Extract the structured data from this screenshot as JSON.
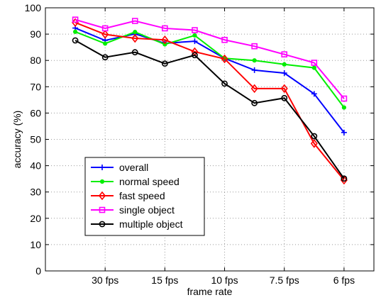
{
  "chart_data": {
    "type": "line",
    "xlabel": "frame rate",
    "ylabel": "accuracy (%)",
    "ylim": [
      0,
      100
    ],
    "yticks": [
      0,
      10,
      20,
      30,
      40,
      50,
      60,
      70,
      80,
      90,
      100
    ],
    "x": [
      1,
      2,
      3,
      4,
      5,
      6,
      7,
      8,
      9,
      10
    ],
    "xlim": [
      0,
      11
    ],
    "xticks": [
      {
        "pos": 2,
        "label": "30 fps"
      },
      {
        "pos": 4,
        "label": "15 fps"
      },
      {
        "pos": 6,
        "label": "10 fps"
      },
      {
        "pos": 8,
        "label": "7.5 fps"
      },
      {
        "pos": 10,
        "label": "6 fps"
      }
    ],
    "grid": true,
    "legend_position": "lower-left",
    "series": [
      {
        "name": "overall",
        "color": "#0000ff",
        "marker": "plus",
        "values": [
          92.3,
          87.6,
          90.1,
          86.5,
          87.3,
          80.8,
          76.3,
          75.2,
          67.3,
          52.6
        ]
      },
      {
        "name": "normal speed",
        "color": "#00ee00",
        "marker": "dot",
        "values": [
          90.9,
          86.4,
          90.8,
          86.1,
          89.5,
          80.8,
          80.0,
          78.5,
          77.2,
          62.1
        ]
      },
      {
        "name": "fast speed",
        "color": "#ff0000",
        "marker": "diamond",
        "values": [
          94.4,
          89.9,
          88.4,
          87.8,
          83.3,
          80.6,
          69.3,
          69.3,
          48.4,
          34.5
        ]
      },
      {
        "name": "single object",
        "color": "#ff00ff",
        "marker": "square",
        "values": [
          95.5,
          92.2,
          95.0,
          92.2,
          91.5,
          87.8,
          85.4,
          82.3,
          79.1,
          65.5
        ]
      },
      {
        "name": "multiple object",
        "color": "#000000",
        "marker": "circle",
        "values": [
          87.6,
          81.2,
          83.1,
          78.8,
          82.0,
          71.2,
          63.8,
          65.7,
          51.2,
          35.1
        ]
      }
    ]
  }
}
